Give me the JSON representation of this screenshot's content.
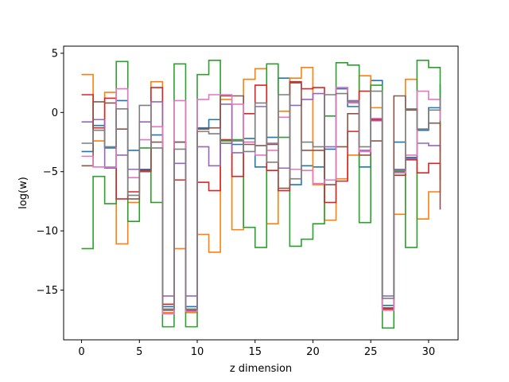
{
  "chart_data": {
    "type": "line",
    "step": "post",
    "xlabel": "z dimension",
    "ylabel": "log(w)",
    "xlim": [
      -1.55,
      32.55
    ],
    "ylim": [
      -19.2,
      5.6
    ],
    "xticks": [
      0,
      5,
      10,
      15,
      20,
      25,
      30
    ],
    "yticks": [
      -15,
      -10,
      -5,
      0,
      5
    ],
    "grid": false,
    "x": [
      0,
      1,
      2,
      3,
      4,
      5,
      6,
      7,
      8,
      9,
      10,
      11,
      12,
      13,
      14,
      15,
      16,
      17,
      18,
      19,
      20,
      21,
      22,
      23,
      24,
      25,
      26,
      27,
      28,
      29,
      30,
      31
    ],
    "series": [
      {
        "color": "#1f77b4",
        "values": [
          -3.3,
          -1.1,
          -3.0,
          1.0,
          -3.2,
          -4.8,
          -1.9,
          -16.4,
          -2.5,
          -16.4,
          -1.3,
          -0.6,
          -2.6,
          -2.7,
          -2.2,
          -4.6,
          -2.1,
          2.9,
          -6.1,
          -4.5,
          -4.6,
          -3.1,
          2.0,
          0.5,
          -4.6,
          2.7,
          -16.3,
          -2.5,
          -3.8,
          -1.5,
          0.4,
          2.4
        ]
      },
      {
        "color": "#ff7f0e",
        "values": [
          3.2,
          -2.4,
          1.7,
          -11.1,
          -7.6,
          -5.0,
          2.6,
          -16.9,
          -11.5,
          -16.9,
          -10.3,
          -11.8,
          1.1,
          -9.9,
          2.8,
          3.7,
          -9.4,
          0.1,
          2.9,
          3.8,
          -6.1,
          -9.1,
          -5.6,
          -3.6,
          3.1,
          0.4,
          -16.7,
          -8.6,
          2.8,
          -9.0,
          -6.7,
          -0.7
        ]
      },
      {
        "color": "#2ca02c",
        "values": [
          -11.5,
          -5.4,
          -7.7,
          4.3,
          -9.2,
          -3.0,
          -7.6,
          -18.1,
          4.1,
          -18.1,
          3.2,
          4.4,
          -2.4,
          -2.3,
          -9.7,
          -11.4,
          4.1,
          -2.1,
          -11.3,
          -10.7,
          -9.4,
          -0.3,
          4.2,
          4.0,
          -9.3,
          2.3,
          -18.2,
          -5.0,
          -11.4,
          4.4,
          3.8,
          -1.2
        ]
      },
      {
        "color": "#d62728",
        "values": [
          1.5,
          -1.3,
          1.2,
          -7.3,
          -6.7,
          -4.9,
          2.1,
          -16.2,
          -5.7,
          -16.7,
          -5.9,
          -6.6,
          -2.3,
          -5.4,
          -0.1,
          2.3,
          -4.9,
          -6.6,
          2.6,
          2.0,
          2.1,
          -7.6,
          -5.8,
          -1.6,
          1.8,
          -0.6,
          -16.6,
          -5.3,
          -4.0,
          -5.1,
          -4.3,
          -5.7
        ]
      },
      {
        "color": "#9467bd",
        "values": [
          -0.8,
          -0.6,
          -4.7,
          -3.6,
          -4.8,
          -0.8,
          0.9,
          -15.5,
          -4.3,
          -15.5,
          -2.9,
          -4.5,
          0.7,
          -3.4,
          -2.5,
          0.5,
          -2.6,
          -4.7,
          0.6,
          1.1,
          1.6,
          -2.9,
          2.1,
          1.0,
          -3.2,
          -0.7,
          -15.5,
          -4.8,
          -3.9,
          -2.6,
          -2.8,
          -3.3
        ]
      },
      {
        "color": "#8c564b",
        "values": [
          -4.5,
          0.9,
          0.8,
          -1.4,
          -7.3,
          -5.0,
          -2.5,
          -16.7,
          -2.5,
          -16.7,
          -1.4,
          -1.3,
          1.4,
          1.4,
          -2.7,
          -2.8,
          -2.7,
          -6.4,
          2.5,
          -3.2,
          -3.2,
          -6.1,
          -2.9,
          -0.1,
          -3.6,
          -2.4,
          -16.5,
          1.4,
          0.2,
          -1.4,
          -0.9,
          -8.2
        ]
      },
      {
        "color": "#e377c2",
        "values": [
          -3.7,
          -4.6,
          -4.6,
          2.0,
          -5.5,
          -2.3,
          -1.2,
          -17.0,
          1.0,
          -16.8,
          1.1,
          1.5,
          1.5,
          0.7,
          -2.5,
          -3.6,
          -3.2,
          -0.4,
          -4.8,
          -4.9,
          -6.0,
          -5.7,
          2.1,
          0.8,
          -3.3,
          -0.5,
          -16.7,
          -5.1,
          -3.6,
          1.8,
          1.1,
          -0.7
        ]
      },
      {
        "color": "#7f7f7f",
        "values": [
          -2.6,
          -1.5,
          -2.9,
          0.3,
          -7.0,
          0.6,
          -3.0,
          -16.6,
          -3.1,
          -16.6,
          -1.6,
          -1.8,
          -2.6,
          -2.4,
          -3.3,
          0.8,
          -4.2,
          1.5,
          -5.6,
          -2.5,
          -2.9,
          1.5,
          1.6,
          0.9,
          -2.9,
          1.8,
          -15.7,
          -4.9,
          0.3,
          -1.4,
          0.2,
          1.2
        ]
      }
    ]
  }
}
